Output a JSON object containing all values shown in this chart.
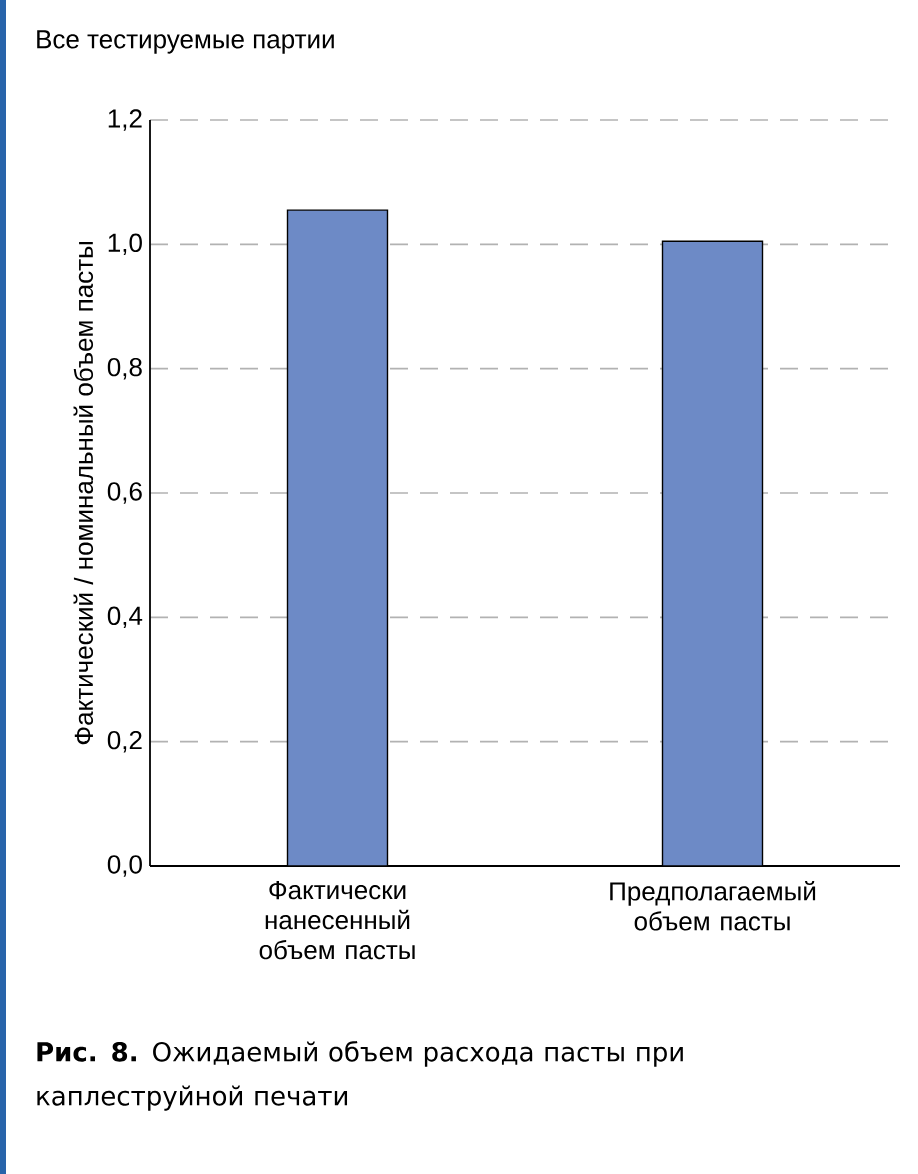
{
  "chart_data": {
    "type": "bar",
    "title": "Все тестируемые партии",
    "ylabel": "Фактический / номинальный объем пасты",
    "categories": [
      "Фактически нанесенный объем пасты",
      "Предполагаемый объем пасты"
    ],
    "values": [
      1.055,
      1.005
    ],
    "color": "#6d8ac6",
    "ylim": [
      0,
      1.2
    ],
    "yticks": [
      {
        "value": 0,
        "label": "0,0"
      },
      {
        "value": 0.2,
        "label": "0,2"
      },
      {
        "value": 0.4,
        "label": "0,4"
      },
      {
        "value": 0.6,
        "label": "0,6"
      },
      {
        "value": 0.8,
        "label": "0,8"
      },
      {
        "value": 1.0,
        "label": "1,0"
      },
      {
        "value": 1.2,
        "label": "1,2"
      }
    ],
    "grid": "y",
    "annotations": [
      "**Рис. 8.** Ожидаемый объем расхода пасты при каплеструйной печати"
    ]
  }
}
